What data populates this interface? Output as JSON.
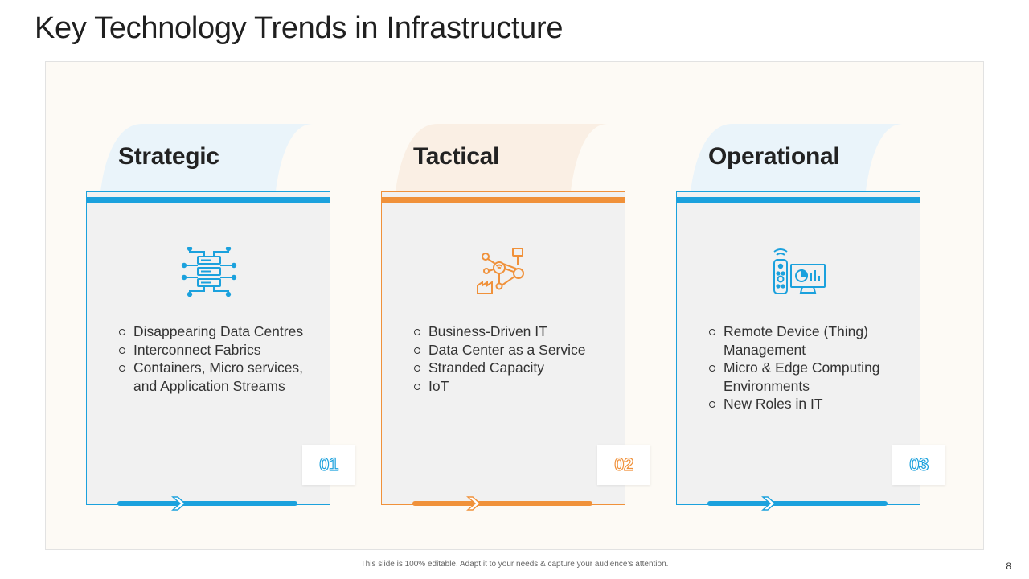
{
  "slide": {
    "title": "Key Technology Trends in Infrastructure",
    "footer": "This slide is 100% editable. Adapt it to your needs & capture your audience’s attention.",
    "page_number": "8"
  },
  "columns": [
    {
      "heading": "Strategic",
      "number": "01",
      "icon": "server-network-icon",
      "accent": "#1ba1dd",
      "tab_tint": "#eaf4fa",
      "bullets": [
        "Disappearing Data Centres",
        "Interconnect Fabrics",
        "Containers, Micro services, and Application Streams"
      ]
    },
    {
      "heading": "Tactical",
      "number": "02",
      "icon": "iot-network-icon",
      "accent": "#f0913a",
      "tab_tint": "#faefe4",
      "bullets": [
        "Business-Driven IT",
        "Data Center as a Service",
        "Stranded Capacity",
        "IoT"
      ]
    },
    {
      "heading": "Operational",
      "number": "03",
      "icon": "remote-monitor-icon",
      "accent": "#1ba1dd",
      "tab_tint": "#eaf4fa",
      "bullets": [
        "Remote Device (Thing) Management",
        "Micro & Edge Computing Environments",
        "New Roles in IT"
      ]
    }
  ]
}
